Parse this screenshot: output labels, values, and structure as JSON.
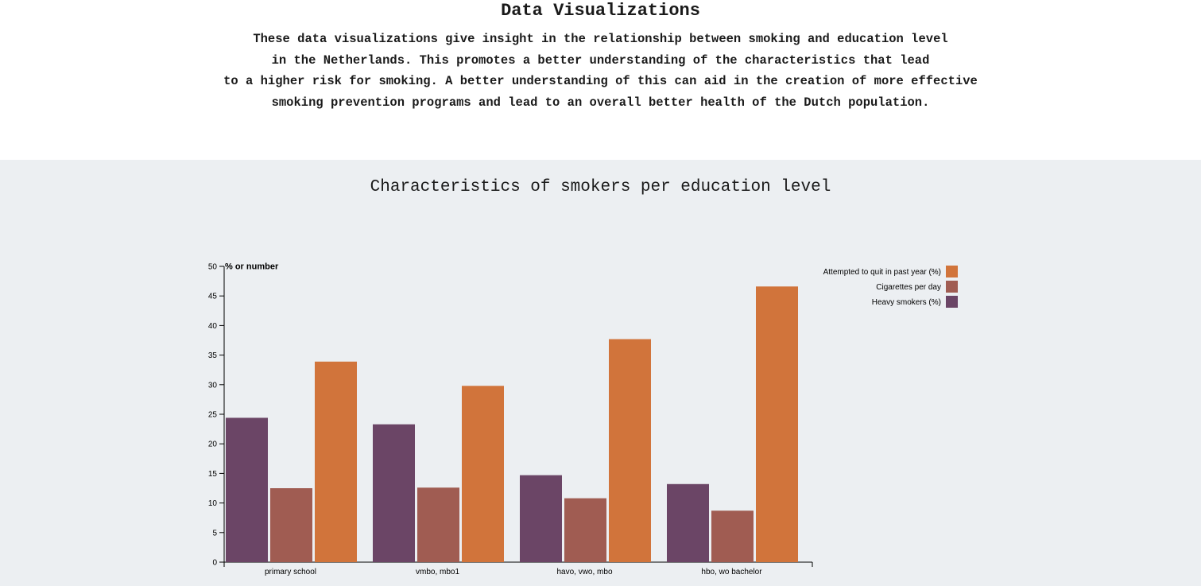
{
  "header": {
    "title": "Data Visualizations",
    "intro_lines": [
      "These data visualizations give insight in the relationship between smoking and education level",
      "in the Netherlands. This promotes a better understanding of the characteristics that lead",
      "to a higher risk for smoking. A better understanding of this can aid in the creation of more effective",
      "smoking prevention programs and lead to an overall better health of the Dutch population."
    ]
  },
  "chart_data": {
    "type": "bar",
    "title": "Characteristics of smokers per education level",
    "ylabel": "% or number",
    "xlabel": "",
    "ylim": [
      0,
      50
    ],
    "yticks": [
      0,
      5,
      10,
      15,
      20,
      25,
      30,
      35,
      40,
      45,
      50
    ],
    "categories": [
      "primary school",
      "vmbo, mbo1",
      "havo, vwo, mbo",
      "hbo, wo bachelor"
    ],
    "series": [
      {
        "name": "Heavy smokers (%)",
        "color": "#6b4566",
        "values": [
          24.4,
          23.3,
          14.7,
          13.2
        ]
      },
      {
        "name": "Cigarettes per day",
        "color": "#a05c52",
        "values": [
          12.5,
          12.6,
          10.8,
          8.7
        ]
      },
      {
        "name": "Attempted to quit in past year (%)",
        "color": "#d1743b",
        "values": [
          33.9,
          29.8,
          37.7,
          46.6
        ]
      }
    ],
    "legend_order": [
      2,
      1,
      0
    ],
    "legend_position": "top-right",
    "grid": false
  }
}
